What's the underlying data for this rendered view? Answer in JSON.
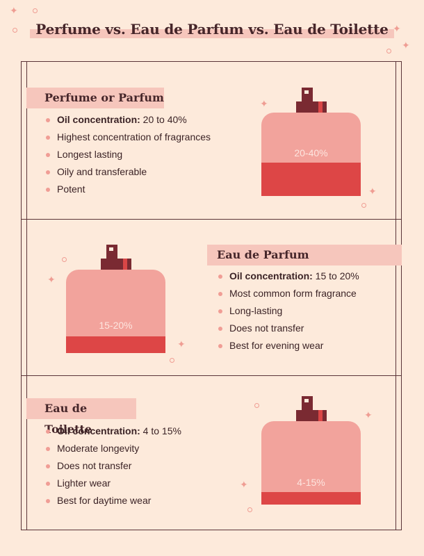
{
  "title": "Perfume  vs. Eau de Parfum vs. Eau de Toilette",
  "sections": [
    {
      "heading": "Perfume or Parfum",
      "oil_label": "Oil concentration:",
      "oil_value": " 20 to 40%",
      "items": [
        "Highest concentration of fragrances",
        "Longest lasting",
        "Oily and transferable",
        "Potent"
      ],
      "bottle_label": "20-40%",
      "fill_level": 0.4
    },
    {
      "heading": "Eau de Parfum",
      "oil_label": "Oil concentration:",
      "oil_value": " 15 to 20%",
      "items": [
        "Most common form fragrance",
        "Long-lasting",
        "Does not transfer",
        "Best for evening wear"
      ],
      "bottle_label": "15-20%",
      "fill_level": 0.2
    },
    {
      "heading": "Eau de Toilette",
      "oil_label": "Oil concentration:",
      "oil_value": " 4 to 15%",
      "items": [
        "Moderate longevity",
        "Does not transfer",
        "Lighter wear",
        "Best for daytime wear"
      ],
      "bottle_label": "4-15%",
      "fill_level": 0.15
    }
  ],
  "colors": {
    "background": "#fdeadb",
    "highlight": "#f6c6bc",
    "bottle_glass": "#f2a39c",
    "bottle_fill": "#dd4646",
    "cap": "#7a2a32",
    "frame": "#5a3337"
  }
}
